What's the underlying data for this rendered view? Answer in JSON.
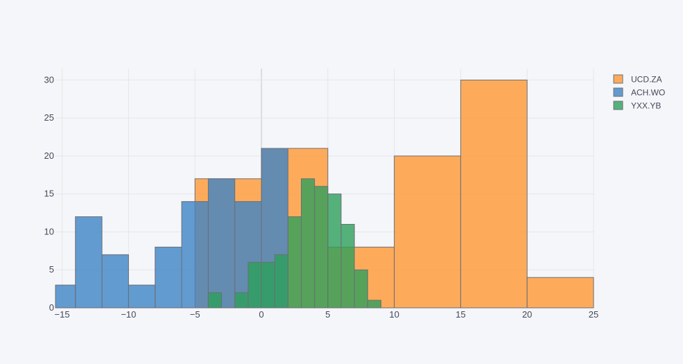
{
  "chart_data": {
    "type": "bar",
    "subtype": "overlaid-histogram",
    "title": "",
    "xlabel": "",
    "ylabel": "",
    "xlim": [
      -15.5,
      25
    ],
    "ylim": [
      0,
      31.5
    ],
    "x_ticks": [
      -15,
      -10,
      -5,
      0,
      5,
      10,
      15,
      20,
      25
    ],
    "x_tick_labels": [
      "−15",
      "−10",
      "−5",
      "0",
      "5",
      "10",
      "15",
      "20",
      "25"
    ],
    "y_ticks": [
      0,
      5,
      10,
      15,
      20,
      25,
      30
    ],
    "y_tick_labels": [
      "0",
      "5",
      "10",
      "15",
      "20",
      "25",
      "30"
    ],
    "grid": true,
    "legend_position": "top-right",
    "bar_outline_color": "#6b6e77",
    "series": [
      {
        "name": "UCD.ZA",
        "color": "#ff9933",
        "bins": [
          {
            "x0": -5,
            "x1": 0,
            "count": 17
          },
          {
            "x0": 0,
            "x1": 5,
            "count": 21
          },
          {
            "x0": 5,
            "x1": 10,
            "count": 8
          },
          {
            "x0": 10,
            "x1": 15,
            "count": 20
          },
          {
            "x0": 15,
            "x1": 20,
            "count": 30
          },
          {
            "x0": 20,
            "x1": 25,
            "count": 4
          }
        ]
      },
      {
        "name": "ACH.WO",
        "color": "#3d85c6",
        "bins": [
          {
            "x0": -16,
            "x1": -14,
            "count": 3
          },
          {
            "x0": -14,
            "x1": -12,
            "count": 12
          },
          {
            "x0": -12,
            "x1": -10,
            "count": 7
          },
          {
            "x0": -10,
            "x1": -8,
            "count": 3
          },
          {
            "x0": -8,
            "x1": -6,
            "count": 8
          },
          {
            "x0": -6,
            "x1": -4,
            "count": 14
          },
          {
            "x0": -4,
            "x1": -2,
            "count": 17
          },
          {
            "x0": -2,
            "x1": 0,
            "count": 14
          },
          {
            "x0": 0,
            "x1": 2,
            "count": 21
          }
        ]
      },
      {
        "name": "YXX.YB",
        "color": "#2ca05a",
        "bins": [
          {
            "x0": -4,
            "x1": -3,
            "count": 2
          },
          {
            "x0": -2,
            "x1": -1,
            "count": 2
          },
          {
            "x0": -1,
            "x1": 0,
            "count": 6
          },
          {
            "x0": 0,
            "x1": 1,
            "count": 6
          },
          {
            "x0": 1,
            "x1": 2,
            "count": 7
          },
          {
            "x0": 2,
            "x1": 3,
            "count": 12
          },
          {
            "x0": 3,
            "x1": 4,
            "count": 17
          },
          {
            "x0": 4,
            "x1": 5,
            "count": 16
          },
          {
            "x0": 5,
            "x1": 6,
            "count": 15
          },
          {
            "x0": 6,
            "x1": 7,
            "count": 11
          },
          {
            "x0": 7,
            "x1": 8,
            "count": 5
          },
          {
            "x0": 8,
            "x1": 9,
            "count": 1
          }
        ]
      }
    ]
  }
}
